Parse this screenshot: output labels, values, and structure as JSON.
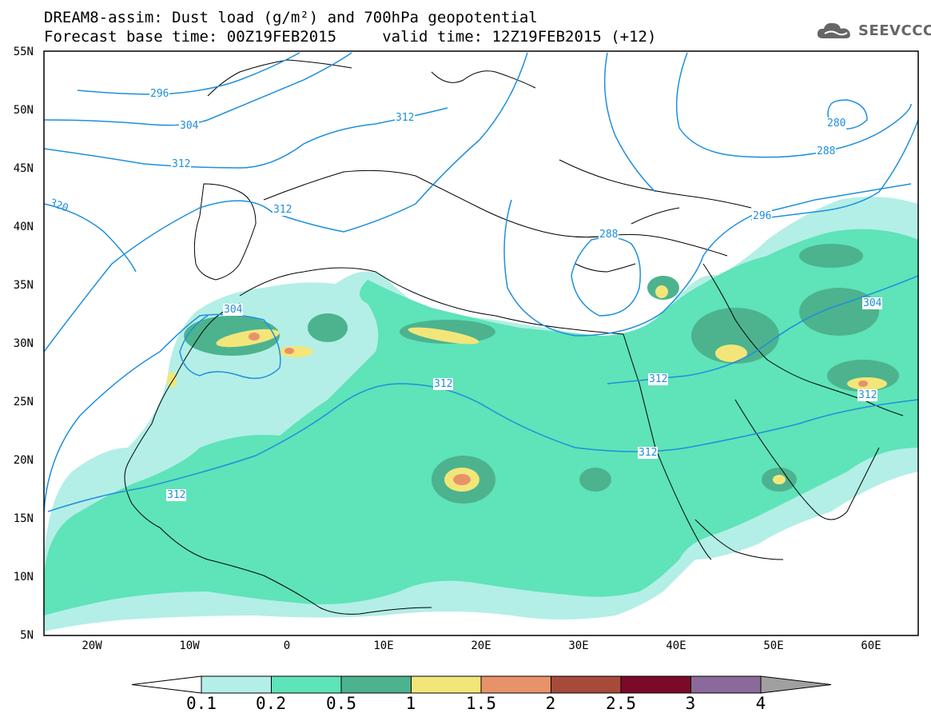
{
  "header": {
    "line1": "DREAM8-assim: Dust load (g/m²) and 700hPa geopotential",
    "line2": "Forecast base time: 00Z19FEB2015     valid time: 12Z19FEB2015 (+12)"
  },
  "logo": {
    "text": "SEEVCCC",
    "icon": "cloud-logo-icon"
  },
  "map": {
    "lat_labels": [
      "55N",
      "50N",
      "45N",
      "40N",
      "35N",
      "30N",
      "25N",
      "20N",
      "15N",
      "10N",
      "5N"
    ],
    "lon_labels": [
      "20W",
      "10W",
      "0",
      "10E",
      "20E",
      "30E",
      "40E",
      "50E",
      "60E"
    ],
    "contour_labels": [
      "296",
      "304",
      "312",
      "312",
      "320",
      "312",
      "312",
      "288",
      "296",
      "288",
      "280",
      "304",
      "304",
      "312",
      "312",
      "312",
      "312"
    ],
    "contour_color": "#1e8fdc"
  },
  "colorbar": {
    "ticks": [
      "0.1",
      "0.2",
      "0.5",
      "1",
      "1.5",
      "2",
      "2.5",
      "3",
      "4"
    ],
    "colors": [
      "#ffffff",
      "#b3efe6",
      "#5fe3b8",
      "#4cb38e",
      "#f2e67a",
      "#e8926a",
      "#a84a3a",
      "#7a0a2a",
      "#8a6a9a",
      "#a0a0a0"
    ]
  }
}
